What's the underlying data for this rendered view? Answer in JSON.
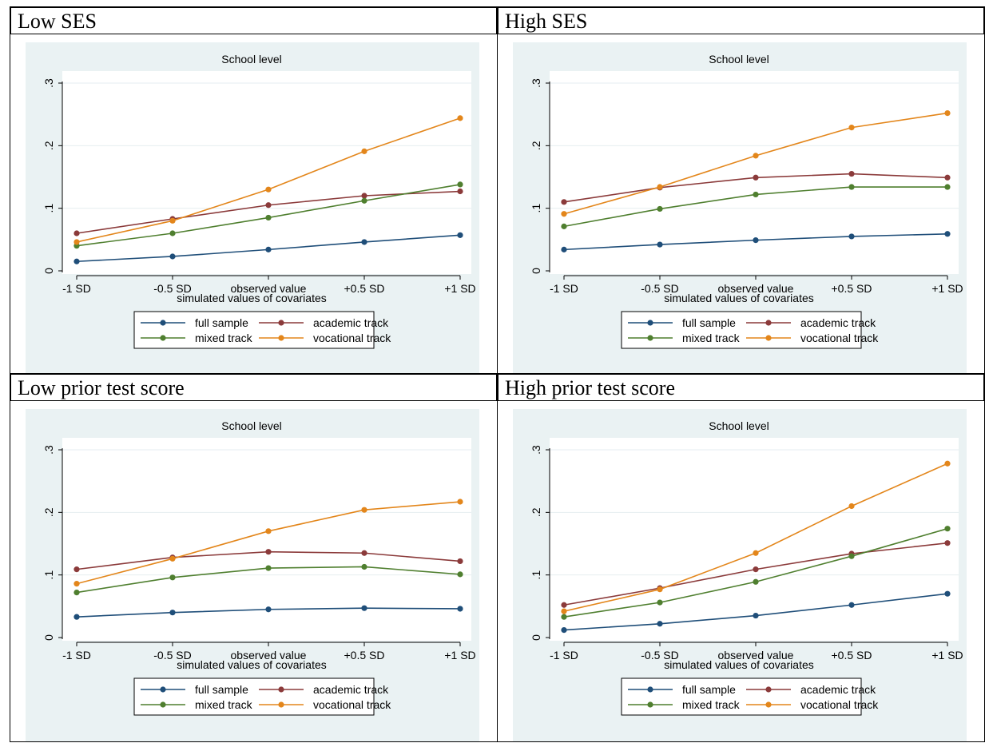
{
  "panels": [
    {
      "heading": "Low SES",
      "chart_data": {
        "type": "line",
        "title": "School level",
        "xlabel": "simulated values of covariates",
        "ylabel": "",
        "categories": [
          "-1 SD",
          "-0.5 SD",
          "observed value",
          "+0.5 SD",
          "+1 SD"
        ],
        "ylim": [
          0,
          0.3
        ],
        "yticks": [
          0,
          0.1,
          0.2,
          0.3
        ],
        "ytick_labels": [
          "0",
          ".1",
          ".2",
          ".3"
        ],
        "grid": true,
        "legend_position": "bottom",
        "series": [
          {
            "name": "full sample",
            "color": "#1f4e79",
            "values": [
              0.015,
              0.023,
              0.034,
              0.046,
              0.057
            ]
          },
          {
            "name": "academic track",
            "color": "#8b3a3a",
            "values": [
              0.06,
              0.083,
              0.105,
              0.12,
              0.127
            ]
          },
          {
            "name": "mixed track",
            "color": "#4f7f2f",
            "values": [
              0.04,
              0.06,
              0.085,
              0.112,
              0.138
            ]
          },
          {
            "name": "vocational track",
            "color": "#e3861b",
            "values": [
              0.046,
              0.08,
              0.13,
              0.191,
              0.244
            ]
          }
        ]
      }
    },
    {
      "heading": "High SES",
      "chart_data": {
        "type": "line",
        "title": "School level",
        "xlabel": "simulated values of covariates",
        "ylabel": "",
        "categories": [
          "-1 SD",
          "-0.5 SD",
          "observed value",
          "+0.5 SD",
          "+1 SD"
        ],
        "ylim": [
          0,
          0.3
        ],
        "yticks": [
          0,
          0.1,
          0.2,
          0.3
        ],
        "ytick_labels": [
          "0",
          ".1",
          ".2",
          ".3"
        ],
        "grid": true,
        "legend_position": "bottom",
        "series": [
          {
            "name": "full sample",
            "color": "#1f4e79",
            "values": [
              0.034,
              0.042,
              0.049,
              0.055,
              0.059
            ]
          },
          {
            "name": "academic track",
            "color": "#8b3a3a",
            "values": [
              0.11,
              0.133,
              0.149,
              0.155,
              0.149
            ]
          },
          {
            "name": "mixed track",
            "color": "#4f7f2f",
            "values": [
              0.071,
              0.099,
              0.122,
              0.134,
              0.134
            ]
          },
          {
            "name": "vocational track",
            "color": "#e3861b",
            "values": [
              0.091,
              0.134,
              0.184,
              0.229,
              0.252
            ]
          }
        ]
      }
    },
    {
      "heading": "Low prior test score",
      "chart_data": {
        "type": "line",
        "title": "School level",
        "xlabel": "simulated values of covariates",
        "ylabel": "",
        "categories": [
          "-1 SD",
          "-0.5 SD",
          "observed value",
          "+0.5 SD",
          "+1 SD"
        ],
        "ylim": [
          0,
          0.3
        ],
        "yticks": [
          0,
          0.1,
          0.2,
          0.3
        ],
        "ytick_labels": [
          "0",
          ".1",
          ".2",
          ".3"
        ],
        "grid": true,
        "legend_position": "bottom",
        "series": [
          {
            "name": "full sample",
            "color": "#1f4e79",
            "values": [
              0.033,
              0.04,
              0.045,
              0.047,
              0.046
            ]
          },
          {
            "name": "academic track",
            "color": "#8b3a3a",
            "values": [
              0.109,
              0.128,
              0.137,
              0.135,
              0.122
            ]
          },
          {
            "name": "mixed track",
            "color": "#4f7f2f",
            "values": [
              0.072,
              0.096,
              0.111,
              0.113,
              0.101
            ]
          },
          {
            "name": "vocational track",
            "color": "#e3861b",
            "values": [
              0.086,
              0.126,
              0.17,
              0.204,
              0.217
            ]
          }
        ]
      }
    },
    {
      "heading": "High prior test score",
      "chart_data": {
        "type": "line",
        "title": "School level",
        "xlabel": "simulated values of covariates",
        "ylabel": "",
        "categories": [
          "-1 SD",
          "-0.5 SD",
          "observed value",
          "+0.5 SD",
          "+1 SD"
        ],
        "ylim": [
          0,
          0.3
        ],
        "yticks": [
          0,
          0.1,
          0.2,
          0.3
        ],
        "ytick_labels": [
          "0",
          ".1",
          ".2",
          ".3"
        ],
        "grid": true,
        "legend_position": "bottom",
        "series": [
          {
            "name": "full sample",
            "color": "#1f4e79",
            "values": [
              0.012,
              0.022,
              0.035,
              0.052,
              0.07
            ]
          },
          {
            "name": "academic track",
            "color": "#8b3a3a",
            "values": [
              0.052,
              0.079,
              0.109,
              0.134,
              0.151
            ]
          },
          {
            "name": "mixed track",
            "color": "#4f7f2f",
            "values": [
              0.033,
              0.056,
              0.089,
              0.13,
              0.174
            ]
          },
          {
            "name": "vocational track",
            "color": "#e3861b",
            "values": [
              0.042,
              0.077,
              0.135,
              0.21,
              0.278
            ]
          }
        ]
      }
    }
  ],
  "theme": {
    "plot_region_bg": "#eaf2f3",
    "plot_inner_bg": "#ffffff",
    "gridline_color": "#e6eef0"
  }
}
